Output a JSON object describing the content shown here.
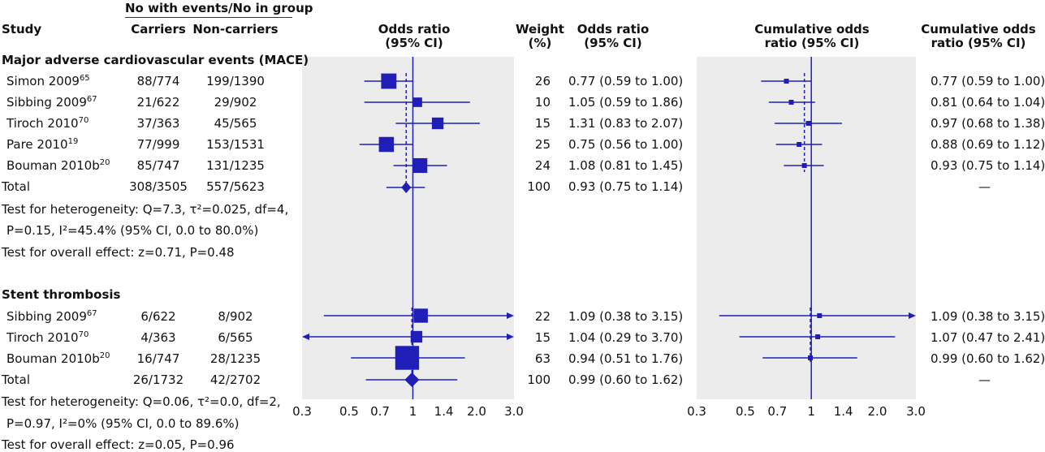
{
  "headers": {
    "study": "Study",
    "group_header": "No with events/No in group",
    "carriers": "Carriers",
    "noncarriers": "Non-carriers",
    "or_plot": [
      "Odds ratio",
      "(95% CI)"
    ],
    "weight": [
      "Weight",
      "(%)"
    ],
    "or_text": [
      "Odds ratio",
      "(95% CI)"
    ],
    "cum_plot": [
      "Cumulative odds",
      "ratio (95% CI)"
    ],
    "cum_text": [
      "Cumulative odds",
      "ratio (95% CI)"
    ]
  },
  "sections": [
    {
      "title": "Major adverse cardiovascular events (MACE)",
      "studies": [
        {
          "name": "Simon 2009",
          "ref": "65",
          "carriers": "88/774",
          "noncarriers": "199/1390",
          "weight": "26",
          "or": "0.77 (0.59 to 1.00)",
          "cum": "0.77 (0.59 to 1.00)"
        },
        {
          "name": "Sibbing 2009",
          "ref": "67",
          "carriers": "21/622",
          "noncarriers": "29/902",
          "weight": "10",
          "or": "1.05 (0.59 to 1.86)",
          "cum": "0.81 (0.64 to 1.04)"
        },
        {
          "name": "Tiroch 2010",
          "ref": "70",
          "carriers": "37/363",
          "noncarriers": "45/565",
          "weight": "15",
          "or": "1.31 (0.83 to 2.07)",
          "cum": "0.97 (0.68 to 1.38)"
        },
        {
          "name": "Pare 2010",
          "ref": "19",
          "carriers": "77/999",
          "noncarriers": "153/1531",
          "weight": "25",
          "or": "0.75 (0.56 to 1.00)",
          "cum": "0.88 (0.69 to 1.12)"
        },
        {
          "name": "Bouman 2010b",
          "ref": "20",
          "carriers": "85/747",
          "noncarriers": "131/1235",
          "weight": "24",
          "or": "1.08 (0.81 to 1.45)",
          "cum": "0.93 (0.75 to 1.14)"
        }
      ],
      "total": {
        "name": "Total",
        "carriers": "308/3505",
        "noncarriers": "557/5623",
        "weight": "100",
        "or": "0.93 (0.75 to 1.14)",
        "cum": "—"
      },
      "heterogeneity": [
        "Test for heterogeneity: Q=7.3, τ²=0.025, df=4,",
        "P=0.15, I²=45.4% (95% CI, 0.0 to 80.0%)"
      ],
      "overall": "Test for overall effect: z=0.71, P=0.48"
    },
    {
      "title": "Stent thrombosis",
      "studies": [
        {
          "name": "Sibbing 2009",
          "ref": "67",
          "carriers": "6/622",
          "noncarriers": "8/902",
          "weight": "22",
          "or": "1.09 (0.38 to 3.15)",
          "cum": "1.09 (0.38 to 3.15)"
        },
        {
          "name": "Tiroch 2010",
          "ref": "70",
          "carriers": "4/363",
          "noncarriers": "6/565",
          "weight": "15",
          "or": "1.04 (0.29 to 3.70)",
          "cum": "1.07 (0.47 to 2.41)"
        },
        {
          "name": "Bouman 2010b",
          "ref": "20",
          "carriers": "16/747",
          "noncarriers": "28/1235",
          "weight": "63",
          "or": "0.94 (0.51 to 1.76)",
          "cum": "0.99 (0.60 to 1.62)"
        }
      ],
      "total": {
        "name": "Total",
        "carriers": "26/1732",
        "noncarriers": "42/2702",
        "weight": "100",
        "or": "0.99 (0.60 to 1.62)",
        "cum": "—"
      },
      "heterogeneity": [
        "Test for heterogeneity: Q=0.06, τ²=0.0, df=2,",
        "P=0.97, I²=0% (95% CI, 0.0 to 89.6%)"
      ],
      "overall": "Test for overall effect: z=0.05, P=0.96"
    }
  ],
  "chart_data": [
    {
      "type": "forest",
      "title": "Odds ratio (95% CI)",
      "x_scale": "log",
      "xlim": [
        0.3,
        3.0
      ],
      "xticks": [
        0.3,
        0.5,
        0.7,
        1,
        1.4,
        2.0,
        3.0
      ],
      "xtick_labels": [
        "0.3",
        "0.5",
        "0.7",
        "1",
        "1.4",
        "2.0",
        "3.0"
      ],
      "reference_line": 1,
      "color": "#1f1fb8",
      "sections": [
        {
          "name": "Major adverse cardiovascular events (MACE)",
          "studies": [
            {
              "label": "Simon 2009",
              "or": 0.77,
              "lo": 0.59,
              "hi": 1.0,
              "weight": 26
            },
            {
              "label": "Sibbing 2009",
              "or": 1.05,
              "lo": 0.59,
              "hi": 1.86,
              "weight": 10
            },
            {
              "label": "Tiroch 2010",
              "or": 1.31,
              "lo": 0.83,
              "hi": 2.07,
              "weight": 15
            },
            {
              "label": "Pare 2010",
              "or": 0.75,
              "lo": 0.56,
              "hi": 1.0,
              "weight": 25
            },
            {
              "label": "Bouman 2010b",
              "or": 1.08,
              "lo": 0.81,
              "hi": 1.45,
              "weight": 24
            }
          ],
          "pooled": {
            "or": 0.93,
            "lo": 0.75,
            "hi": 1.14
          }
        },
        {
          "name": "Stent thrombosis",
          "studies": [
            {
              "label": "Sibbing 2009",
              "or": 1.09,
              "lo": 0.38,
              "hi": 3.15,
              "weight": 22
            },
            {
              "label": "Tiroch 2010",
              "or": 1.04,
              "lo": 0.29,
              "hi": 3.7,
              "weight": 15
            },
            {
              "label": "Bouman 2010b",
              "or": 0.94,
              "lo": 0.51,
              "hi": 1.76,
              "weight": 63
            }
          ],
          "pooled": {
            "or": 0.99,
            "lo": 0.6,
            "hi": 1.62
          }
        }
      ]
    },
    {
      "type": "forest",
      "title": "Cumulative odds ratio (95% CI)",
      "x_scale": "log",
      "xlim": [
        0.3,
        3.0
      ],
      "xticks": [
        0.3,
        0.5,
        0.7,
        1,
        1.4,
        2.0,
        3.0
      ],
      "xtick_labels": [
        "0.3",
        "0.5",
        "0.7",
        "1",
        "1.4",
        "2.0",
        "3.0"
      ],
      "reference_line": 1,
      "color": "#1f1fb8",
      "sections": [
        {
          "name": "Major adverse cardiovascular events (MACE)",
          "studies": [
            {
              "label": "Simon 2009",
              "or": 0.77,
              "lo": 0.59,
              "hi": 1.0
            },
            {
              "label": "Sibbing 2009",
              "or": 0.81,
              "lo": 0.64,
              "hi": 1.04
            },
            {
              "label": "Tiroch 2010",
              "or": 0.97,
              "lo": 0.68,
              "hi": 1.38
            },
            {
              "label": "Pare 2010",
              "or": 0.88,
              "lo": 0.69,
              "hi": 1.12
            },
            {
              "label": "Bouman 2010b",
              "or": 0.93,
              "lo": 0.75,
              "hi": 1.14
            }
          ],
          "pooled_line": 0.93
        },
        {
          "name": "Stent thrombosis",
          "studies": [
            {
              "label": "Sibbing 2009",
              "or": 1.09,
              "lo": 0.38,
              "hi": 3.15
            },
            {
              "label": "Tiroch 2010",
              "or": 1.07,
              "lo": 0.47,
              "hi": 2.41
            },
            {
              "label": "Bouman 2010b",
              "or": 0.99,
              "lo": 0.6,
              "hi": 1.62
            }
          ],
          "pooled_line": 0.99
        }
      ]
    }
  ]
}
